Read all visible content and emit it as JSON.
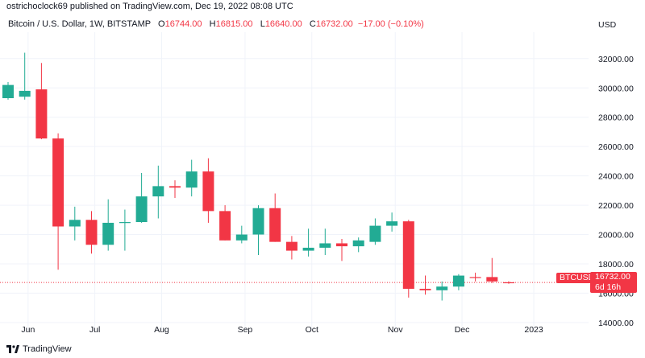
{
  "header": {
    "published": "ostrichoclock69 published on TradingView.com, Dec 19, 2022 08:08 UTC"
  },
  "info": {
    "symbol": "Bitcoin / U.S. Dollar, 1W, BITSTAMP",
    "o_label": "O",
    "o_val": "16744.00",
    "h_label": "H",
    "h_val": "16815.00",
    "l_label": "L",
    "l_val": "16640.00",
    "c_label": "C",
    "c_val": "16732.00",
    "change": "−17.00 (−0.10%)"
  },
  "axis_currency": "USD",
  "last_price": {
    "symbol": "BTCUSD",
    "price": "16732.00",
    "countdown": "6d 16h"
  },
  "footer": {
    "brand": "TradingView"
  },
  "colors": {
    "up": "#22ab94",
    "down": "#f23645",
    "grid": "#f0f3fa",
    "text": "#131722"
  },
  "chart_data": {
    "type": "candlestick",
    "y_ticks": [
      "14000.00",
      "16000.00",
      "18000.00",
      "20000.00",
      "22000.00",
      "24000.00",
      "26000.00",
      "28000.00",
      "30000.00",
      "32000.00"
    ],
    "x_ticks": [
      {
        "label": "Jun",
        "index": 1.2
      },
      {
        "label": "Jul",
        "index": 5.2
      },
      {
        "label": "Aug",
        "index": 9.2
      },
      {
        "label": "Sep",
        "index": 14.2
      },
      {
        "label": "Oct",
        "index": 18.2
      },
      {
        "label": "Nov",
        "index": 23.2
      },
      {
        "label": "Dec",
        "index": 27.2
      },
      {
        "label": "2023",
        "index": 31.5
      }
    ],
    "ylim": [
      13500,
      33800
    ],
    "candles": [
      {
        "o": 29300,
        "h": 30400,
        "l": 29200,
        "c": 30200
      },
      {
        "o": 29400,
        "h": 32400,
        "l": 29200,
        "c": 29800
      },
      {
        "o": 29900,
        "h": 31700,
        "l": 26500,
        "c": 26550
      },
      {
        "o": 26550,
        "h": 26900,
        "l": 17600,
        "c": 20550
      },
      {
        "o": 20550,
        "h": 21900,
        "l": 19600,
        "c": 21000
      },
      {
        "o": 21000,
        "h": 21600,
        "l": 18700,
        "c": 19300
      },
      {
        "o": 19300,
        "h": 22400,
        "l": 18900,
        "c": 20800
      },
      {
        "o": 20800,
        "h": 21700,
        "l": 18900,
        "c": 20850
      },
      {
        "o": 20850,
        "h": 24200,
        "l": 20800,
        "c": 22600
      },
      {
        "o": 22600,
        "h": 24700,
        "l": 21100,
        "c": 23300
      },
      {
        "o": 23300,
        "h": 23700,
        "l": 22500,
        "c": 23200
      },
      {
        "o": 23200,
        "h": 25100,
        "l": 22600,
        "c": 24300
      },
      {
        "o": 24300,
        "h": 25200,
        "l": 20800,
        "c": 21600
      },
      {
        "o": 21600,
        "h": 22000,
        "l": 19600,
        "c": 19600
      },
      {
        "o": 19600,
        "h": 20600,
        "l": 19400,
        "c": 20000
      },
      {
        "o": 20000,
        "h": 22000,
        "l": 18600,
        "c": 21800
      },
      {
        "o": 21800,
        "h": 22800,
        "l": 19500,
        "c": 19500
      },
      {
        "o": 19500,
        "h": 19900,
        "l": 18300,
        "c": 18900
      },
      {
        "o": 18900,
        "h": 20400,
        "l": 18500,
        "c": 19100
      },
      {
        "o": 19100,
        "h": 20400,
        "l": 18600,
        "c": 19400
      },
      {
        "o": 19400,
        "h": 19700,
        "l": 18200,
        "c": 19200
      },
      {
        "o": 19200,
        "h": 19800,
        "l": 18800,
        "c": 19600
      },
      {
        "o": 19500,
        "h": 21100,
        "l": 19300,
        "c": 20600
      },
      {
        "o": 20600,
        "h": 21500,
        "l": 20200,
        "c": 20900
      },
      {
        "o": 20900,
        "h": 21000,
        "l": 15700,
        "c": 16300
      },
      {
        "o": 16300,
        "h": 17200,
        "l": 15900,
        "c": 16200
      },
      {
        "o": 16200,
        "h": 16800,
        "l": 15500,
        "c": 16450
      },
      {
        "o": 16450,
        "h": 17300,
        "l": 16200,
        "c": 17200
      },
      {
        "o": 17100,
        "h": 17400,
        "l": 16800,
        "c": 17050
      },
      {
        "o": 17100,
        "h": 18400,
        "l": 16700,
        "c": 16800
      },
      {
        "o": 16744,
        "h": 16815,
        "l": 16640,
        "c": 16732
      }
    ]
  }
}
